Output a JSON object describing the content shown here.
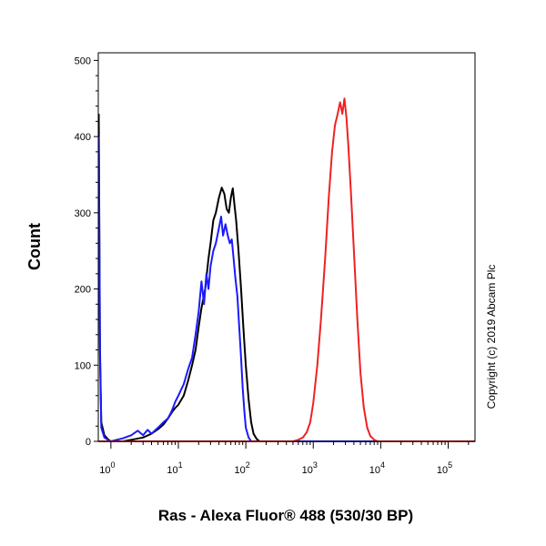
{
  "chart_data": {
    "type": "line",
    "title": "",
    "xlabel": "Ras - Alexa Fluor® 488 (530/30 BP)",
    "ylabel": "Count",
    "x_scale": "log",
    "xlim": [
      0.65,
      250000
    ],
    "ylim": [
      0,
      510
    ],
    "y_ticks": [
      {
        "value": 0,
        "label": "0"
      },
      {
        "value": 100,
        "label": "100"
      },
      {
        "value": 200,
        "label": "200"
      },
      {
        "value": 300,
        "label": "300"
      },
      {
        "value": 400,
        "label": "400"
      },
      {
        "value": 500,
        "label": "500"
      }
    ],
    "x_ticks": [
      {
        "value": 1,
        "base": "10",
        "exp": "0"
      },
      {
        "value": 10,
        "base": "10",
        "exp": "1"
      },
      {
        "value": 100,
        "base": "10",
        "exp": "2"
      },
      {
        "value": 1000,
        "base": "10",
        "exp": "3"
      },
      {
        "value": 10000,
        "base": "10",
        "exp": "4"
      },
      {
        "value": 100000,
        "base": "10",
        "exp": "5"
      }
    ],
    "annotation": "Copyright (c) 2019 Abcam Plc",
    "grid": false,
    "legend": "none",
    "series": [
      {
        "color": "#000000",
        "points": [
          [
            0.66,
            430
          ],
          [
            0.69,
            120
          ],
          [
            0.72,
            25
          ],
          [
            0.8,
            8
          ],
          [
            0.9,
            3
          ],
          [
            1.0,
            0
          ],
          [
            1.5,
            0
          ],
          [
            2.0,
            2
          ],
          [
            3.0,
            5
          ],
          [
            4.0,
            10
          ],
          [
            5.0,
            16
          ],
          [
            6.0,
            22
          ],
          [
            7.0,
            30
          ],
          [
            8.0,
            38
          ],
          [
            9.0,
            44
          ],
          [
            10.0,
            48
          ],
          [
            12.0,
            60
          ],
          [
            14.0,
            80
          ],
          [
            16.0,
            100
          ],
          [
            18.0,
            120
          ],
          [
            20.0,
            150
          ],
          [
            22.0,
            175
          ],
          [
            25.0,
            200
          ],
          [
            28.0,
            240
          ],
          [
            30.0,
            260
          ],
          [
            33.0,
            290
          ],
          [
            36.0,
            300
          ],
          [
            40.0,
            320
          ],
          [
            44.0,
            333
          ],
          [
            48.0,
            325
          ],
          [
            52.0,
            305
          ],
          [
            56.0,
            300
          ],
          [
            60.0,
            320
          ],
          [
            64.0,
            332
          ],
          [
            68.0,
            310
          ],
          [
            72.0,
            290
          ],
          [
            78.0,
            250
          ],
          [
            85.0,
            200
          ],
          [
            92.0,
            150
          ],
          [
            100.0,
            100
          ],
          [
            110.0,
            55
          ],
          [
            120.0,
            25
          ],
          [
            130.0,
            10
          ],
          [
            145.0,
            3
          ],
          [
            160.0,
            0
          ],
          [
            250000.0,
            0
          ]
        ]
      },
      {
        "color": "#1a1aff",
        "points": [
          [
            0.66,
            400
          ],
          [
            0.69,
            110
          ],
          [
            0.72,
            18
          ],
          [
            0.8,
            5
          ],
          [
            0.9,
            2
          ],
          [
            1.0,
            0
          ],
          [
            1.5,
            4
          ],
          [
            2.0,
            8
          ],
          [
            2.5,
            14
          ],
          [
            3.0,
            8
          ],
          [
            3.5,
            15
          ],
          [
            4.0,
            10
          ],
          [
            5.0,
            18
          ],
          [
            6.0,
            25
          ],
          [
            7.0,
            30
          ],
          [
            8.0,
            40
          ],
          [
            9.0,
            52
          ],
          [
            10.0,
            60
          ],
          [
            11.0,
            68
          ],
          [
            12.0,
            75
          ],
          [
            14.0,
            95
          ],
          [
            16.0,
            110
          ],
          [
            18.0,
            140
          ],
          [
            20.0,
            170
          ],
          [
            22.0,
            210
          ],
          [
            24.0,
            180
          ],
          [
            26.0,
            220
          ],
          [
            28.0,
            200
          ],
          [
            30.0,
            230
          ],
          [
            33.0,
            250
          ],
          [
            36.0,
            260
          ],
          [
            40.0,
            280
          ],
          [
            43.0,
            295
          ],
          [
            46.0,
            270
          ],
          [
            50.0,
            285
          ],
          [
            54.0,
            270
          ],
          [
            58.0,
            260
          ],
          [
            62.0,
            265
          ],
          [
            66.0,
            240
          ],
          [
            70.0,
            215
          ],
          [
            75.0,
            190
          ],
          [
            80.0,
            150
          ],
          [
            85.0,
            110
          ],
          [
            90.0,
            70
          ],
          [
            95.0,
            40
          ],
          [
            100.0,
            18
          ],
          [
            110.0,
            5
          ],
          [
            120.0,
            0
          ],
          [
            250000.0,
            0
          ]
        ]
      },
      {
        "color": "#ee2222",
        "points": [
          [
            0.65,
            0
          ],
          [
            500.0,
            0
          ],
          [
            600.0,
            2
          ],
          [
            700.0,
            5
          ],
          [
            800.0,
            12
          ],
          [
            900.0,
            25
          ],
          [
            1000.0,
            50
          ],
          [
            1150.0,
            100
          ],
          [
            1300.0,
            160
          ],
          [
            1500.0,
            240
          ],
          [
            1700.0,
            320
          ],
          [
            1900.0,
            380
          ],
          [
            2100.0,
            415
          ],
          [
            2300.0,
            430
          ],
          [
            2500.0,
            445
          ],
          [
            2700.0,
            430
          ],
          [
            2900.0,
            450
          ],
          [
            3100.0,
            425
          ],
          [
            3300.0,
            390
          ],
          [
            3600.0,
            330
          ],
          [
            4000.0,
            250
          ],
          [
            4500.0,
            160
          ],
          [
            5000.0,
            90
          ],
          [
            5600.0,
            45
          ],
          [
            6300.0,
            18
          ],
          [
            7000.0,
            7
          ],
          [
            8000.0,
            2
          ],
          [
            9000.0,
            0
          ],
          [
            250000.0,
            0
          ]
        ]
      }
    ]
  }
}
